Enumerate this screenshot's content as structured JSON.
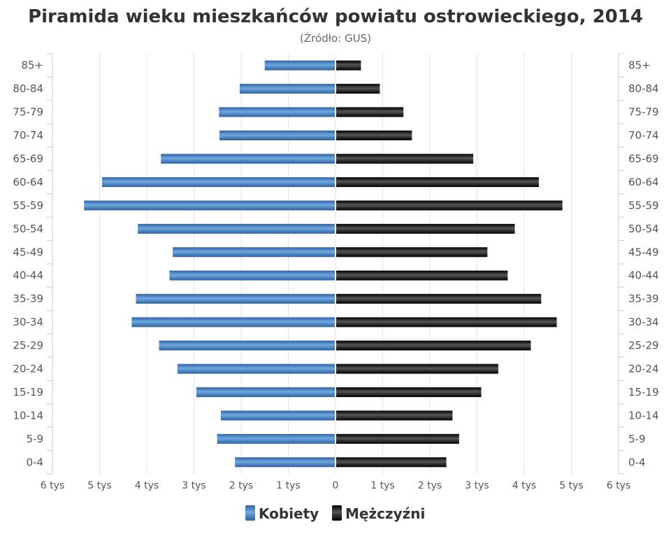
{
  "chart_data": {
    "type": "bar",
    "orientation": "horizontal",
    "title": "Piramida wieku mieszkańców powiatu ostrowieckiego, 2014",
    "subtitle": "(Źródło: GUS)",
    "categories": [
      "85+",
      "80-84",
      "75-79",
      "70-74",
      "65-69",
      "60-64",
      "55-59",
      "50-54",
      "45-49",
      "40-44",
      "35-39",
      "30-34",
      "25-29",
      "20-24",
      "15-19",
      "10-14",
      "5-9",
      "0-4"
    ],
    "series": [
      {
        "name": "Kobiety",
        "color": "#3f7fc4",
        "values": [
          1500,
          2030,
          2470,
          2460,
          3700,
          4950,
          5330,
          4190,
          3450,
          3520,
          4230,
          4320,
          3740,
          3350,
          2950,
          2430,
          2510,
          2130
        ]
      },
      {
        "name": "Mężczyźni",
        "color": "#1a1a1a",
        "values": [
          540,
          940,
          1440,
          1620,
          2920,
          4310,
          4810,
          3800,
          3220,
          3650,
          4360,
          4690,
          4140,
          3450,
          3090,
          2480,
          2620,
          2350
        ]
      }
    ],
    "xlim": [
      -6000,
      6000
    ],
    "x_ticks": [
      -6000,
      -5000,
      -4000,
      -3000,
      -2000,
      -1000,
      0,
      1000,
      2000,
      3000,
      4000,
      5000,
      6000
    ],
    "x_tick_labels": [
      "6 tys",
      "5 tys",
      "4 tys",
      "3 tys",
      "2 tys",
      "1 tys",
      "0",
      "1 tys",
      "2 tys",
      "3 tys",
      "4 tys",
      "5 tys",
      "6 tys"
    ],
    "grid": true,
    "legend_position": "bottom-center"
  }
}
